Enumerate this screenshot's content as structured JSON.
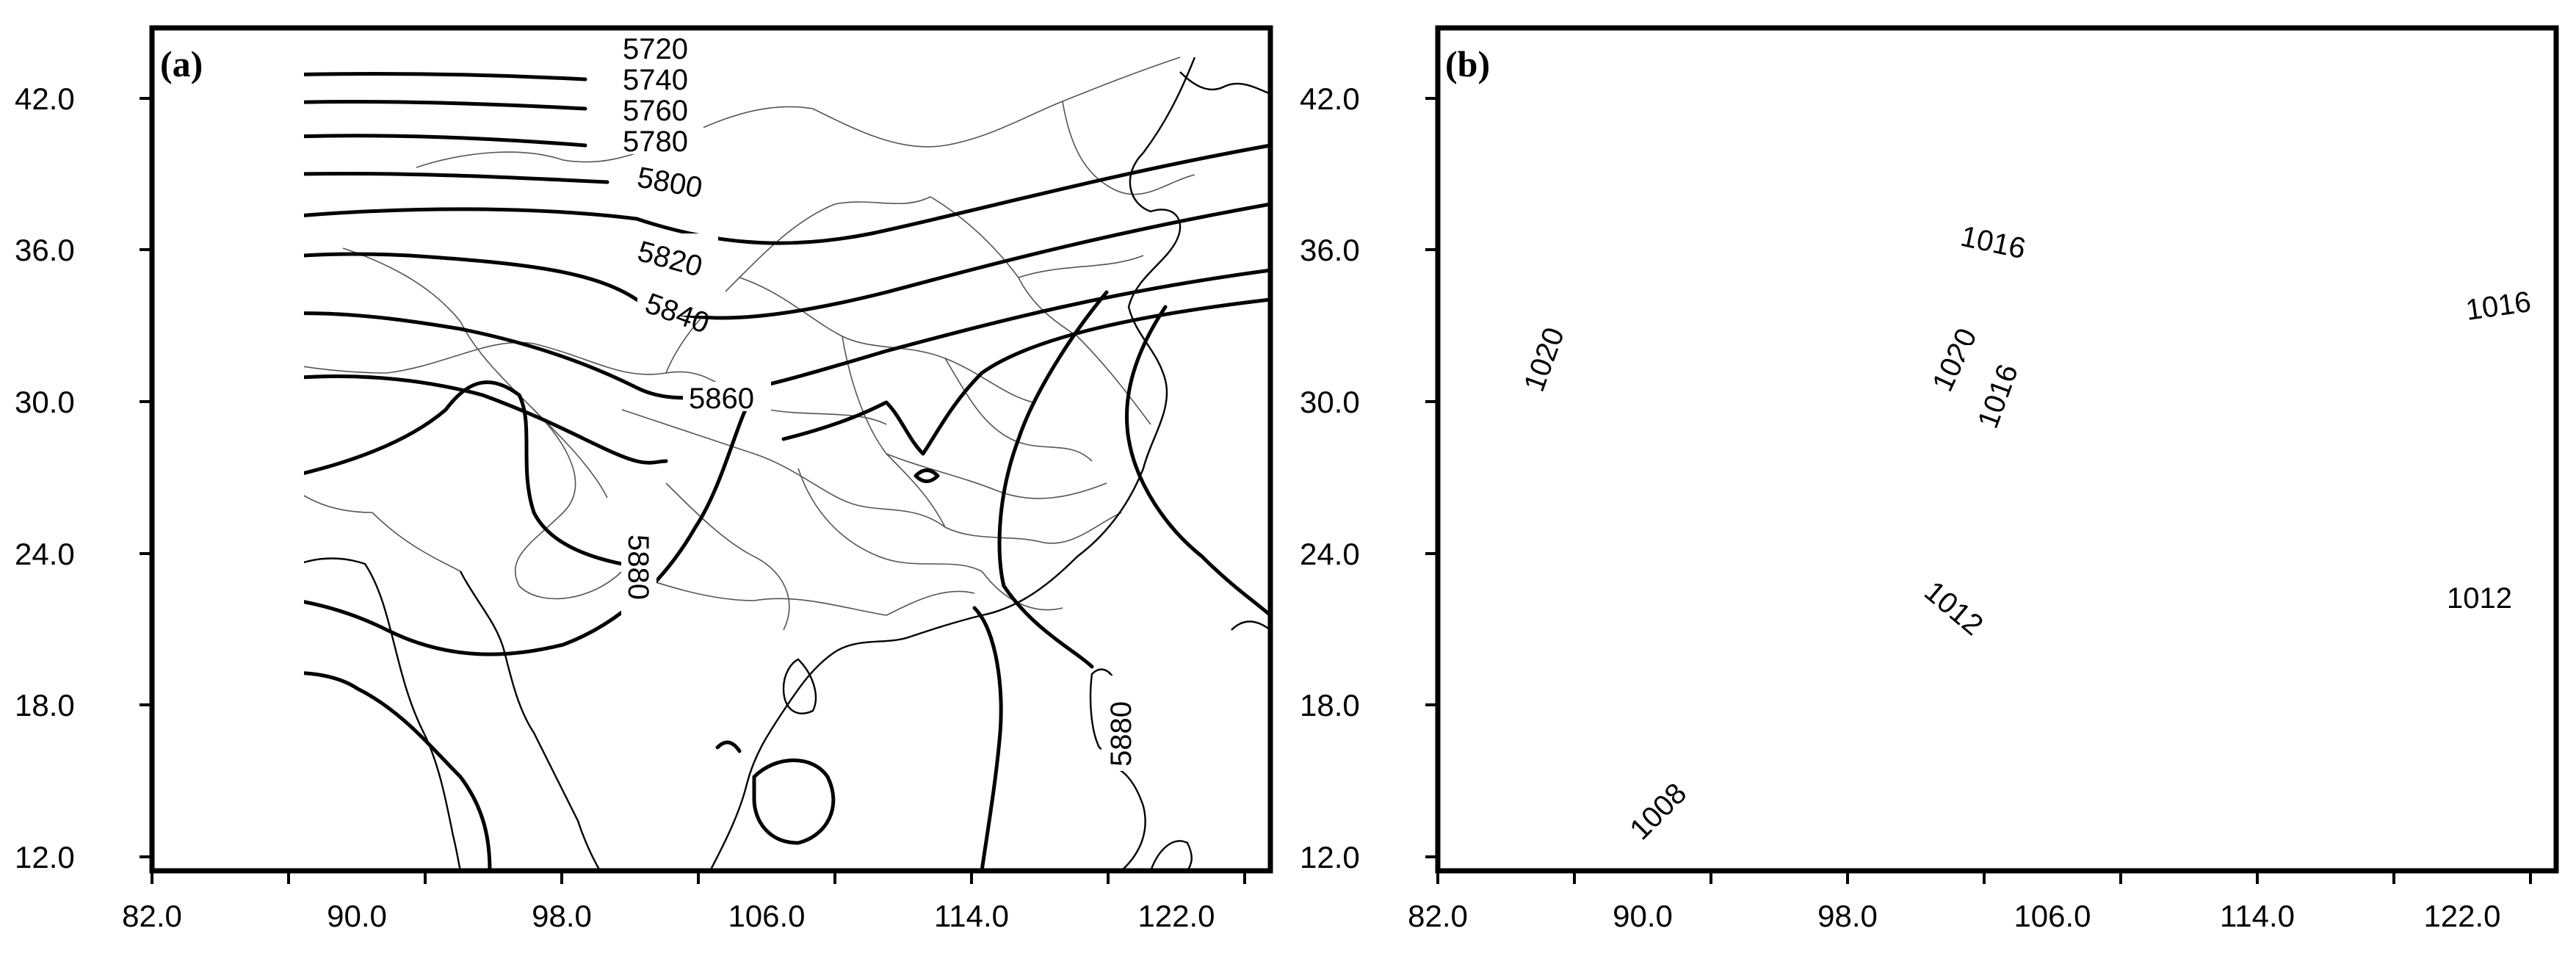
{
  "panels": [
    {
      "id": "a",
      "label": "(a)",
      "contour_labels": [
        "5720",
        "5740",
        "5760",
        "5780",
        "5800",
        "5820",
        "5840",
        "5860",
        "5880",
        "5880"
      ]
    },
    {
      "id": "b",
      "label": "(b)",
      "contour_labels": [
        "1016",
        "1016",
        "1020",
        "1020",
        "1016",
        "1012",
        "1012",
        "1008"
      ]
    }
  ],
  "axes": {
    "y_ticks": [
      "42.0",
      "36.0",
      "30.0",
      "24.0",
      "18.0",
      "12.0"
    ],
    "x_ticks": [
      "82.0",
      "90.0",
      "98.0",
      "106.0",
      "114.0",
      "122.0"
    ]
  }
}
